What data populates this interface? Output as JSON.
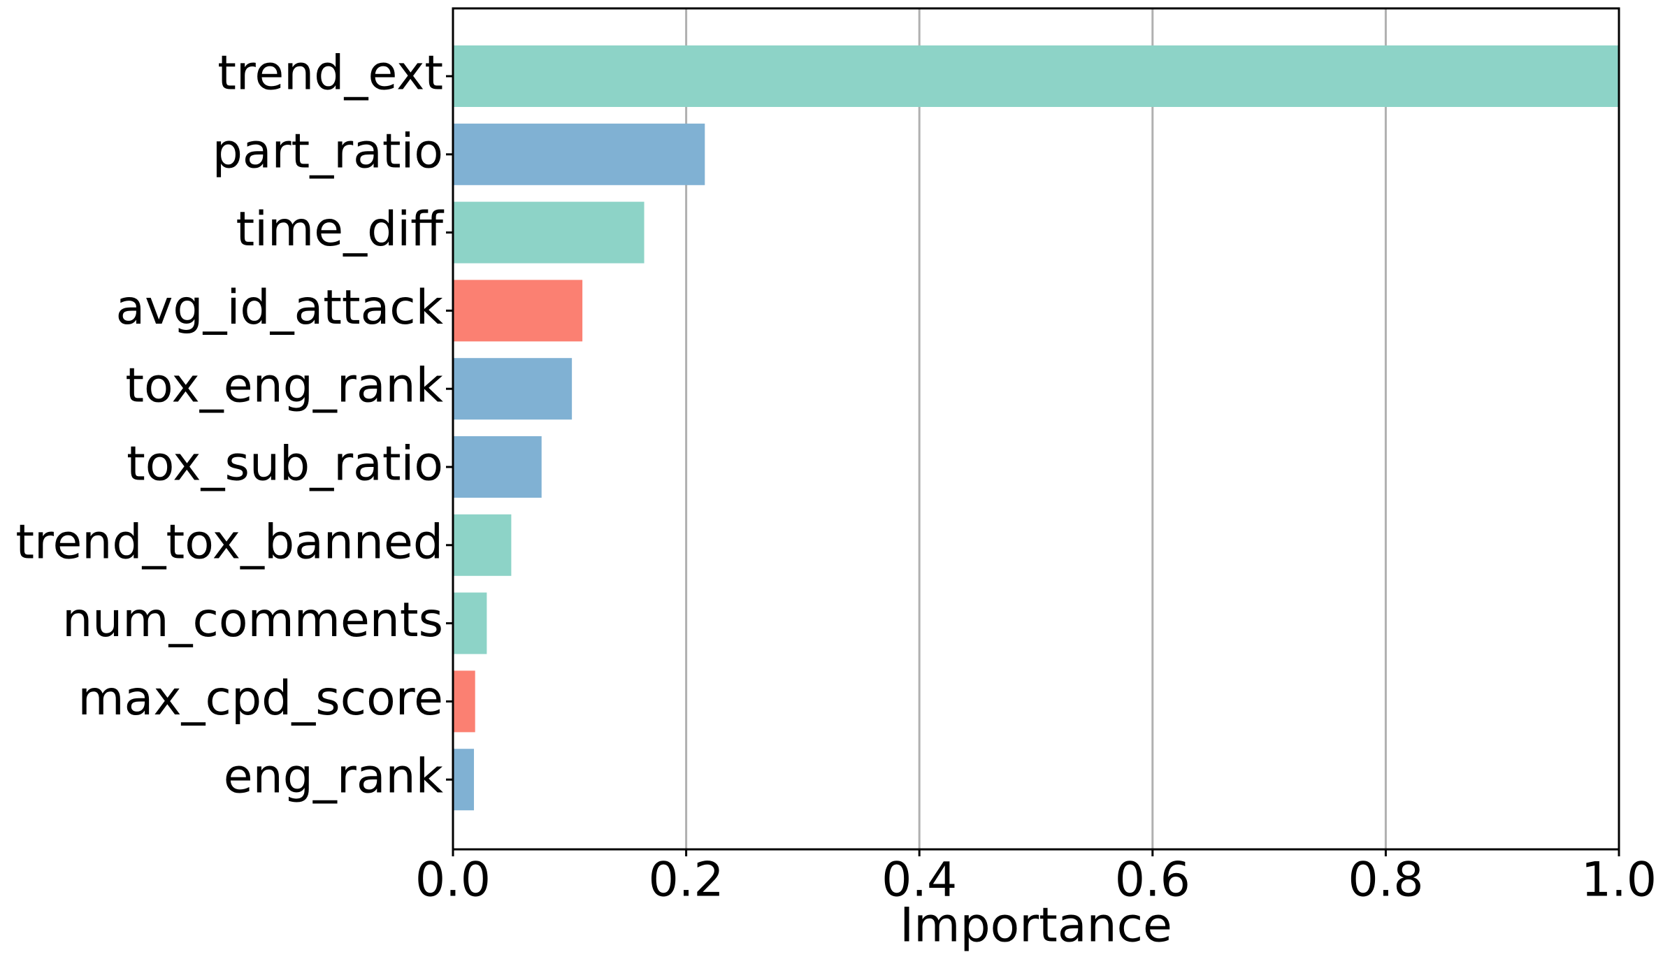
{
  "chart_data": {
    "type": "barh",
    "xlabel": "Importance",
    "categories": [
      "trend_ext",
      "part_ratio",
      "time_diff",
      "avg_id_attack",
      "tox_eng_rank",
      "tox_sub_ratio",
      "trend_tox_banned",
      "num_comments",
      "max_cpd_score",
      "eng_rank"
    ],
    "values": [
      1.0,
      0.216,
      0.164,
      0.111,
      0.102,
      0.076,
      0.05,
      0.029,
      0.019,
      0.018
    ],
    "colors": [
      "#8dd3c7",
      "#80b1d3",
      "#8dd3c7",
      "#fb8072",
      "#80b1d3",
      "#80b1d3",
      "#8dd3c7",
      "#8dd3c7",
      "#fb8072",
      "#80b1d3"
    ],
    "xlim": [
      0,
      1
    ],
    "xticks": [
      {
        "value": 0,
        "label": "0.0"
      },
      0.2,
      0.4,
      0.6,
      0.8,
      {
        "value": 1,
        "label": "1.0"
      }
    ],
    "grid": true
  }
}
